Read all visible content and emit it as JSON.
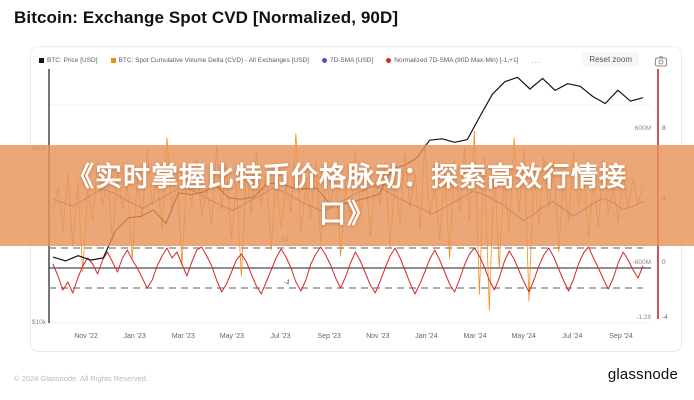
{
  "title": "Bitcoin: Exchange Spot CVD [Normalized, 90D]",
  "toolbar": {
    "reset_zoom": "Reset zoom",
    "camera_icon": "camera-snapshot"
  },
  "legend": {
    "items": [
      {
        "label": "BTC: Price [USD]",
        "color": "#141414",
        "shape": "square"
      },
      {
        "label": "BTC: Spot Cumulative Volume Delta (CVD) - All Exchanges [USD]",
        "color": "#ef8e1d",
        "shape": "square"
      },
      {
        "label": "7D-SMA [USD]",
        "color": "#4a55c0",
        "shape": "circle"
      },
      {
        "label": "Normalized 7D-SMA (90D Max-Min) [-1,+1]",
        "color": "#d42a2a",
        "shape": "circle"
      }
    ],
    "more": "..."
  },
  "overlay": {
    "line1": "《实时掌握比特币价格脉动：探索高效行情接",
    "line2": "口》",
    "bg": "#e7945a",
    "text_color": "#ffffff"
  },
  "footer": {
    "copyright": "© 2024 Glassnode. All Rights Reserved.",
    "brand": "glassnode"
  },
  "chart_data": {
    "type": "line",
    "title": "Bitcoin: Exchange Spot CVD [Normalized, 90D]",
    "x_range": [
      "Nov 2022",
      "Sep 2024"
    ],
    "x_ticks": [
      "Nov '22",
      "Jan '23",
      "Mar '23",
      "May '23",
      "Jul '23",
      "Sep '23",
      "Nov '23",
      "Jan '24",
      "Mar '24",
      "May '24",
      "Jul '24",
      "Sep '24"
    ],
    "grid": true,
    "legend_position": "top",
    "axes": {
      "price_left": {
        "scale": "log",
        "ticks": [
          {
            "label": "$40k",
            "value": 40000
          },
          {
            "label": "$10k",
            "value": 10000
          }
        ]
      },
      "cvd_right": {
        "ticks": [
          {
            "label": "600M",
            "value": 600000000
          },
          {
            "label": "-600M",
            "value": -600000000
          }
        ],
        "last_value_label": "-1.28"
      },
      "norm_right": {
        "color": "#c53030",
        "ticks": [
          {
            "label": "8"
          },
          {
            "label": "4"
          },
          {
            "label": "0"
          },
          {
            "label": "-4"
          }
        ]
      }
    },
    "reference_lines": {
      "solid_zero": 0,
      "dashed_upper": 1,
      "dashed_lower": -1,
      "upper_label": "+1",
      "lower_label": "-1"
    },
    "series": [
      {
        "name": "BTC: Price [USD]",
        "color": "#141414",
        "axis": "price_left",
        "unit": "USD_thousands",
        "values": [
          16.9,
          16.4,
          17.1,
          16.5,
          16.8,
          20.9,
          23.1,
          23.4,
          24.6,
          22.1,
          28.2,
          27.8,
          28.4,
          29.9,
          27.1,
          26.8,
          27.3,
          30.2,
          30.6,
          29.4,
          29.1,
          29.3,
          26.0,
          25.8,
          26.4,
          27.1,
          27.9,
          34.2,
          35.1,
          37.3,
          42.9,
          43.4,
          42.2,
          43.1,
          51.8,
          61.9,
          68.4,
          70.8,
          64.5,
          70.2,
          63.8,
          67.3,
          65.9,
          60.8,
          57.5,
          63.9,
          58.6,
          60.2
        ]
      },
      {
        "name": "BTC: Spot Cumulative Volume Delta (CVD) - All Exchanges [USD]",
        "color": "#ef8e1d",
        "axis": "cvd_right",
        "unit": "USD_millions",
        "values": [
          -150,
          80,
          -320,
          200,
          -450,
          120,
          -680,
          60,
          -220,
          310,
          -90,
          180,
          -400,
          250,
          -120,
          90,
          -560,
          150,
          -200,
          420,
          -80,
          160,
          -300,
          520,
          -140,
          230,
          -620,
          180,
          -90,
          340,
          -180,
          70,
          -260,
          450,
          -130,
          280,
          -380,
          110,
          -720,
          240,
          -160,
          380,
          -90,
          200,
          -480,
          150,
          -280,
          90,
          -150,
          560,
          -340,
          120,
          -200,
          310,
          -420,
          180,
          -100,
          260,
          -540,
          90,
          -230,
          400,
          -150,
          220,
          -360,
          130,
          -80,
          290,
          -460,
          170,
          -250,
          380,
          -120,
          210,
          -300,
          460,
          -180,
          100,
          -390,
          240,
          -560,
          320,
          -140,
          430,
          -220,
          580,
          -880,
          350,
          -1020,
          280,
          -640,
          190,
          -330,
          520,
          -150,
          410,
          -940,
          230,
          -270,
          360,
          -120,
          300,
          -500,
          180,
          -230,
          420,
          -90,
          250,
          -380,
          140,
          -280,
          330,
          -160,
          90,
          -240,
          200,
          -110,
          160,
          -70,
          120
        ]
      },
      {
        "name": "7D-SMA [USD]",
        "color": "#4a55c0",
        "axis": "cvd_right",
        "unit": "USD_millions",
        "values": [
          -30,
          -60,
          -90,
          -40,
          20,
          60,
          30,
          -20,
          -70,
          -110,
          -60,
          -10,
          40,
          80,
          50,
          0,
          -50,
          -90,
          -130,
          -80,
          -30,
          20,
          70,
          40,
          -10,
          -60,
          -100,
          -140,
          -90,
          -40,
          10,
          50,
          90,
          60,
          10,
          -40,
          -80,
          -120,
          -160,
          -110,
          -60,
          -10,
          40,
          20,
          -30,
          -80,
          -150,
          -220,
          -170,
          -100,
          -50,
          -110,
          -180,
          -130,
          -70,
          -20,
          -60,
          -120,
          -90,
          -50
        ]
      },
      {
        "name": "Normalized 7D-SMA (90D Max-Min) [-1,+1]",
        "color": "#d42a2a",
        "axis": "norm_right",
        "unit": "normalized",
        "values": [
          0.2,
          -0.4,
          -1.1,
          -0.7,
          -1.25,
          -0.5,
          0.1,
          0.5,
          0.2,
          -0.3,
          0.4,
          0.8,
          0.3,
          -0.2,
          0.5,
          0.9,
          0.4,
          0.0,
          -0.5,
          -1.0,
          -0.6,
          0.1,
          0.6,
          1.0,
          0.5,
          0.8,
          0.2,
          -0.4,
          0.3,
          0.9,
          1.05,
          0.6,
          0.1,
          -0.6,
          -1.2,
          -0.8,
          -0.2,
          0.4,
          0.7,
          0.3,
          -0.3,
          -0.9,
          -1.3,
          -0.7,
          -0.1,
          0.5,
          0.95,
          0.55,
          0.0,
          -0.7,
          -1.15,
          -0.6,
          0.2,
          0.7,
          1.05,
          0.65,
          0.15,
          -0.5,
          -1.0,
          -0.45,
          0.25,
          0.8,
          0.35,
          -0.25,
          -0.85,
          -1.25,
          -0.65,
          0.0,
          0.6,
          1.0,
          0.5,
          -0.1,
          -0.75,
          -1.3,
          -0.8,
          -0.2,
          0.45,
          0.9,
          0.4,
          -0.2,
          -0.8,
          -1.2,
          -0.55,
          0.15,
          0.7,
          1.0,
          0.6,
          0.05,
          -0.6,
          -1.1,
          -0.5,
          0.3,
          0.85,
          0.45,
          -0.15,
          -0.7,
          -1.2,
          -0.6,
          0.1,
          0.65,
          1.0,
          0.55,
          -0.05,
          -0.65,
          -1.15,
          -0.55,
          0.2,
          0.75,
          1.05,
          0.5,
          0.0,
          -0.55,
          -1.05,
          -0.5,
          0.25,
          0.8,
          0.4,
          -0.1,
          -0.5,
          0.1
        ]
      }
    ]
  }
}
